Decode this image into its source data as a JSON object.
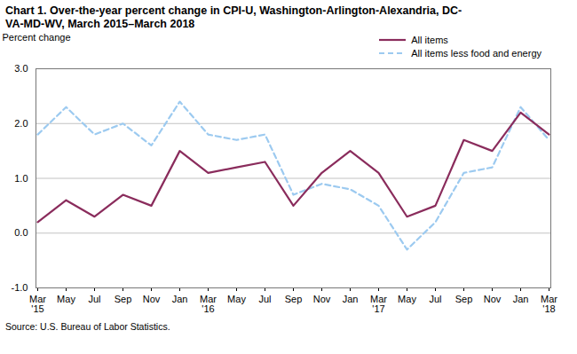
{
  "chart_data": {
    "type": "line",
    "title": "Chart 1. Over-the-year percent change in CPI-U, Washington-Arlington-Alexandria, DC-VA-MD-WV, March 2015–March 2018",
    "y_label": "Percent change",
    "source": "Source: U.S. Bureau of Labor Statistics.",
    "categories": [
      "Mar\n'15",
      "May",
      "Jul",
      "Sep",
      "Nov",
      "Jan",
      "Mar\n'16",
      "May",
      "Jul",
      "Sep",
      "Nov",
      "Jan",
      "Mar\n'17",
      "May",
      "Jul",
      "Sep",
      "Nov",
      "Jan",
      "Mar\n'18"
    ],
    "series": [
      {
        "name": "All items",
        "color": "#8a2c5c",
        "line_style": "solid",
        "values": [
          0.2,
          0.6,
          0.3,
          0.7,
          0.5,
          1.5,
          1.1,
          1.2,
          1.3,
          0.5,
          1.1,
          1.5,
          1.1,
          0.3,
          0.5,
          1.7,
          1.5,
          2.2,
          1.8
        ]
      },
      {
        "name": "All items less food and energy",
        "color": "#9ccaf0",
        "line_style": "dashed",
        "values": [
          1.8,
          2.3,
          1.8,
          2.0,
          1.6,
          2.4,
          1.8,
          1.7,
          1.8,
          0.7,
          0.9,
          0.8,
          0.5,
          -0.3,
          0.2,
          1.1,
          1.2,
          2.3,
          1.7
        ]
      }
    ],
    "ylim": [
      -1.0,
      3.0
    ],
    "yticks": [
      {
        "value": -1.0,
        "label": "-1.0"
      },
      {
        "value": 0,
        "label": "0.0"
      },
      {
        "value": 1.0,
        "label": "1.0"
      },
      {
        "value": 2.0,
        "label": "2.0"
      },
      {
        "value": 3.0,
        "label": "3.0"
      }
    ],
    "grid": true,
    "legend": "top-right"
  }
}
